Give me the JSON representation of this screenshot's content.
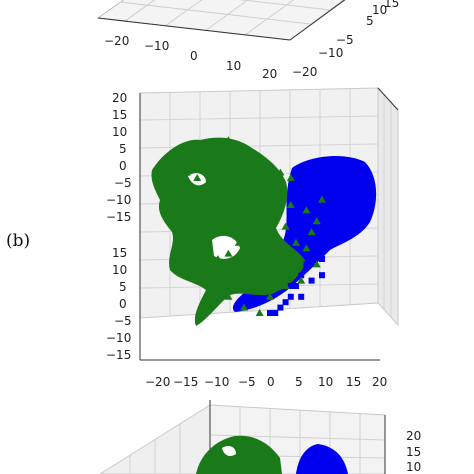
{
  "panel_label": "(b)",
  "chart_data": [
    {
      "type": "scatter",
      "view": "3d-top-cropped",
      "x_ticks": [
        "−20",
        "−10",
        "0",
        "10",
        "20"
      ],
      "y_ticks": [
        "−20",
        "−10",
        "−5",
        "5",
        "10",
        "15"
      ],
      "grid": true
    },
    {
      "type": "scatter",
      "view": "3d-side",
      "x_ticks": [
        "−20",
        "−15",
        "−10",
        "−5",
        "0",
        "5",
        "10",
        "15",
        "20"
      ],
      "z_upper_ticks": [
        "20",
        "15",
        "10",
        "5",
        "0",
        "−5",
        "−10",
        "−15"
      ],
      "z_lower_ticks": [
        "15",
        "10",
        "5",
        "0",
        "−5",
        "−10",
        "−15"
      ],
      "grid": true,
      "series": [
        {
          "color": "#0000ee",
          "marker": "square",
          "points": [
            [
              10,
              8
            ],
            [
              12,
              10
            ],
            [
              14,
              12
            ],
            [
              16,
              11
            ],
            [
              18,
              9
            ],
            [
              19,
              7
            ],
            [
              17,
              5
            ],
            [
              15,
              3
            ],
            [
              13,
              1
            ],
            [
              11,
              0
            ],
            [
              9,
              -2
            ],
            [
              8,
              -4
            ],
            [
              7,
              -6
            ],
            [
              6,
              -8
            ],
            [
              5,
              -10
            ],
            [
              4,
              -12
            ],
            [
              3,
              -13
            ],
            [
              2,
              -14
            ],
            [
              0,
              -15
            ],
            [
              13,
              8
            ],
            [
              15,
              6
            ],
            [
              11,
              5
            ],
            [
              9,
              3
            ],
            [
              12,
              -1
            ],
            [
              10,
              -5
            ],
            [
              8,
              -9
            ],
            [
              6,
              -12
            ],
            [
              14,
              10
            ],
            [
              17,
              8
            ],
            [
              16,
              4
            ],
            [
              10,
              -8
            ],
            [
              4,
              -10
            ],
            [
              1,
              -15
            ]
          ]
        },
        {
          "color": "#1a7a1a",
          "marker": "triangle",
          "points": [
            [
              -14,
              10
            ],
            [
              -12,
              13
            ],
            [
              -10,
              16
            ],
            [
              -8,
              17
            ],
            [
              -6,
              16
            ],
            [
              -4,
              15
            ],
            [
              -2,
              14
            ],
            [
              0,
              12
            ],
            [
              2,
              11
            ],
            [
              4,
              10
            ],
            [
              -16,
              11
            ],
            [
              -11,
              9
            ],
            [
              -8,
              7
            ],
            [
              -5,
              6
            ],
            [
              -2,
              8
            ],
            [
              1,
              6
            ],
            [
              4,
              5
            ],
            [
              7,
              4
            ],
            [
              9,
              2
            ],
            [
              -12,
              3
            ],
            [
              -9,
              0
            ],
            [
              -6,
              -2
            ],
            [
              -3,
              -3
            ],
            [
              0,
              -1
            ],
            [
              3,
              1
            ],
            [
              5,
              -2
            ],
            [
              8,
              0
            ],
            [
              -10,
              -5
            ],
            [
              -7,
              -7
            ],
            [
              -4,
              -8
            ],
            [
              -1,
              -6
            ],
            [
              2,
              -5
            ],
            [
              5,
              -7
            ],
            [
              -11,
              -10
            ],
            [
              -8,
              -12
            ],
            [
              -5,
              -14
            ],
            [
              -2,
              -15
            ],
            [
              0,
              -12
            ],
            [
              3,
              -10
            ],
            [
              6,
              -9
            ],
            [
              -13,
              6
            ],
            [
              -6,
              12
            ],
            [
              1,
              9
            ],
            [
              -3,
              2
            ],
            [
              -8,
              -4
            ],
            [
              7,
              -3
            ],
            [
              10,
              6
            ],
            [
              9,
              -6
            ],
            [
              -15,
              13
            ],
            [
              -9,
              14
            ]
          ]
        }
      ]
    },
    {
      "type": "scatter",
      "view": "3d-bottom-cropped",
      "z_ticks": [
        "20",
        "15",
        "10"
      ],
      "grid": true
    }
  ]
}
